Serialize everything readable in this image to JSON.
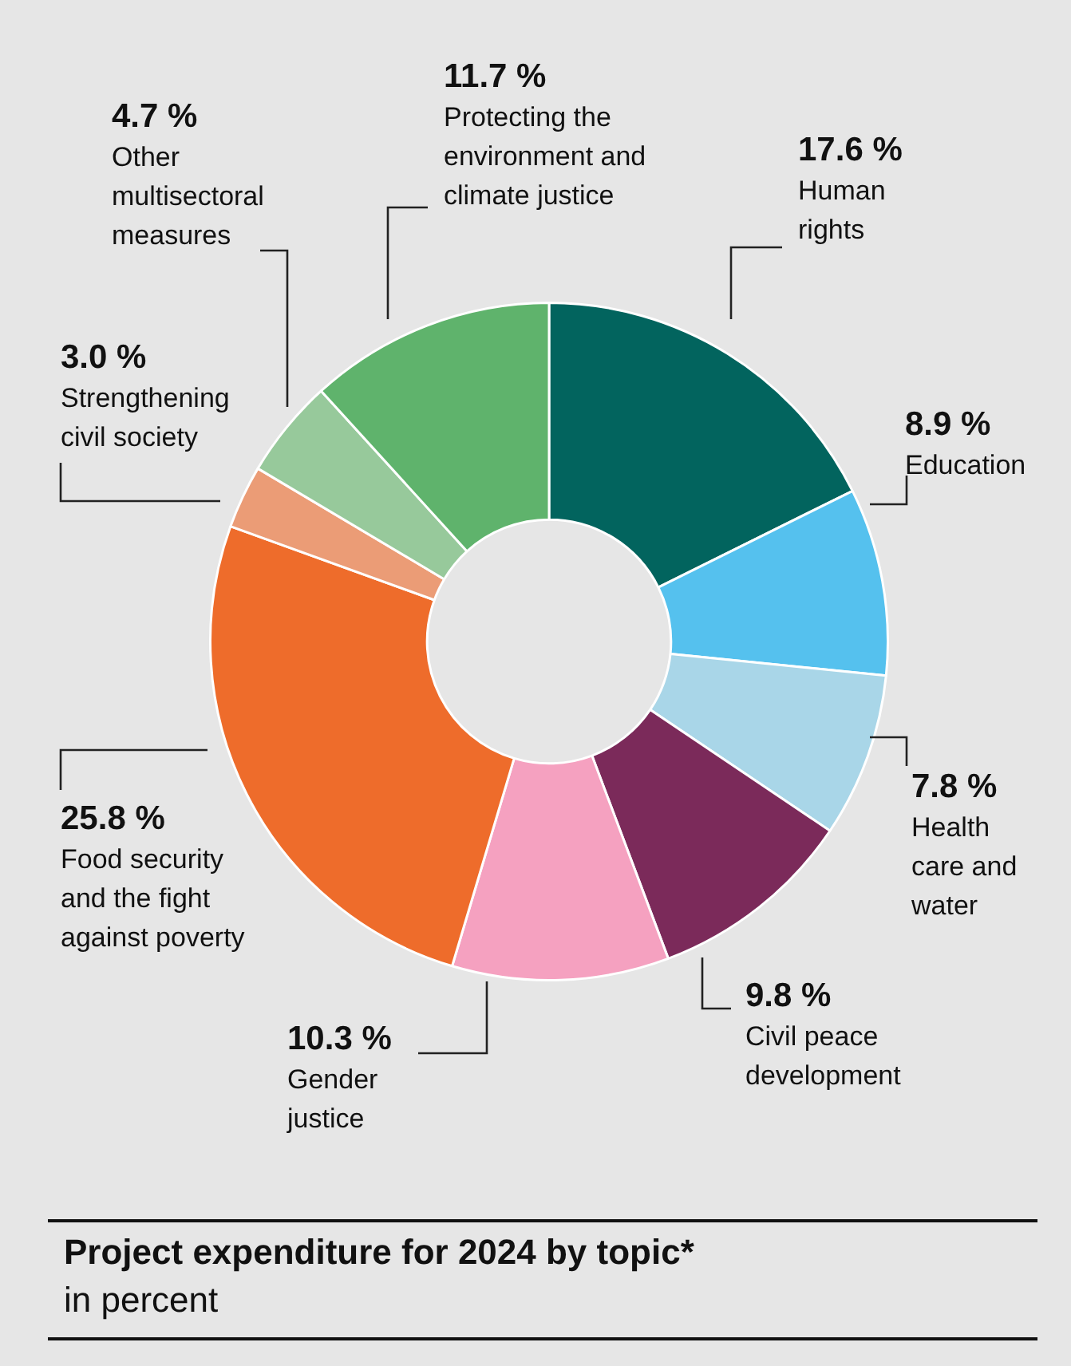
{
  "chart_data": {
    "type": "donut",
    "title": "Project expenditure for 2024 by topic*",
    "subtitle": "in percent",
    "categories": [
      "Human rights",
      "Education",
      "Health care and water",
      "Civil peace development",
      "Gender justice",
      "Food security and the fight against poverty",
      "Strengthening civil society",
      "Other multisectoral measures",
      "Protecting the environment and climate justice"
    ],
    "values": [
      17.6,
      8.9,
      7.8,
      9.8,
      10.3,
      25.8,
      3.0,
      4.7,
      11.7
    ],
    "value_labels": [
      "17.6 %",
      "8.9 %",
      "7.8 %",
      "9.8 %",
      "10.3 %",
      "25.8 %",
      "3.0 %",
      "4.7 %",
      "11.7 %"
    ],
    "colors": [
      "#02645e",
      "#55c1ee",
      "#a9d6e8",
      "#7b2a5a",
      "#f5a1c0",
      "#ee6c2b",
      "#eb9c76",
      "#97c99b",
      "#5fb36c"
    ],
    "legend": false
  }
}
